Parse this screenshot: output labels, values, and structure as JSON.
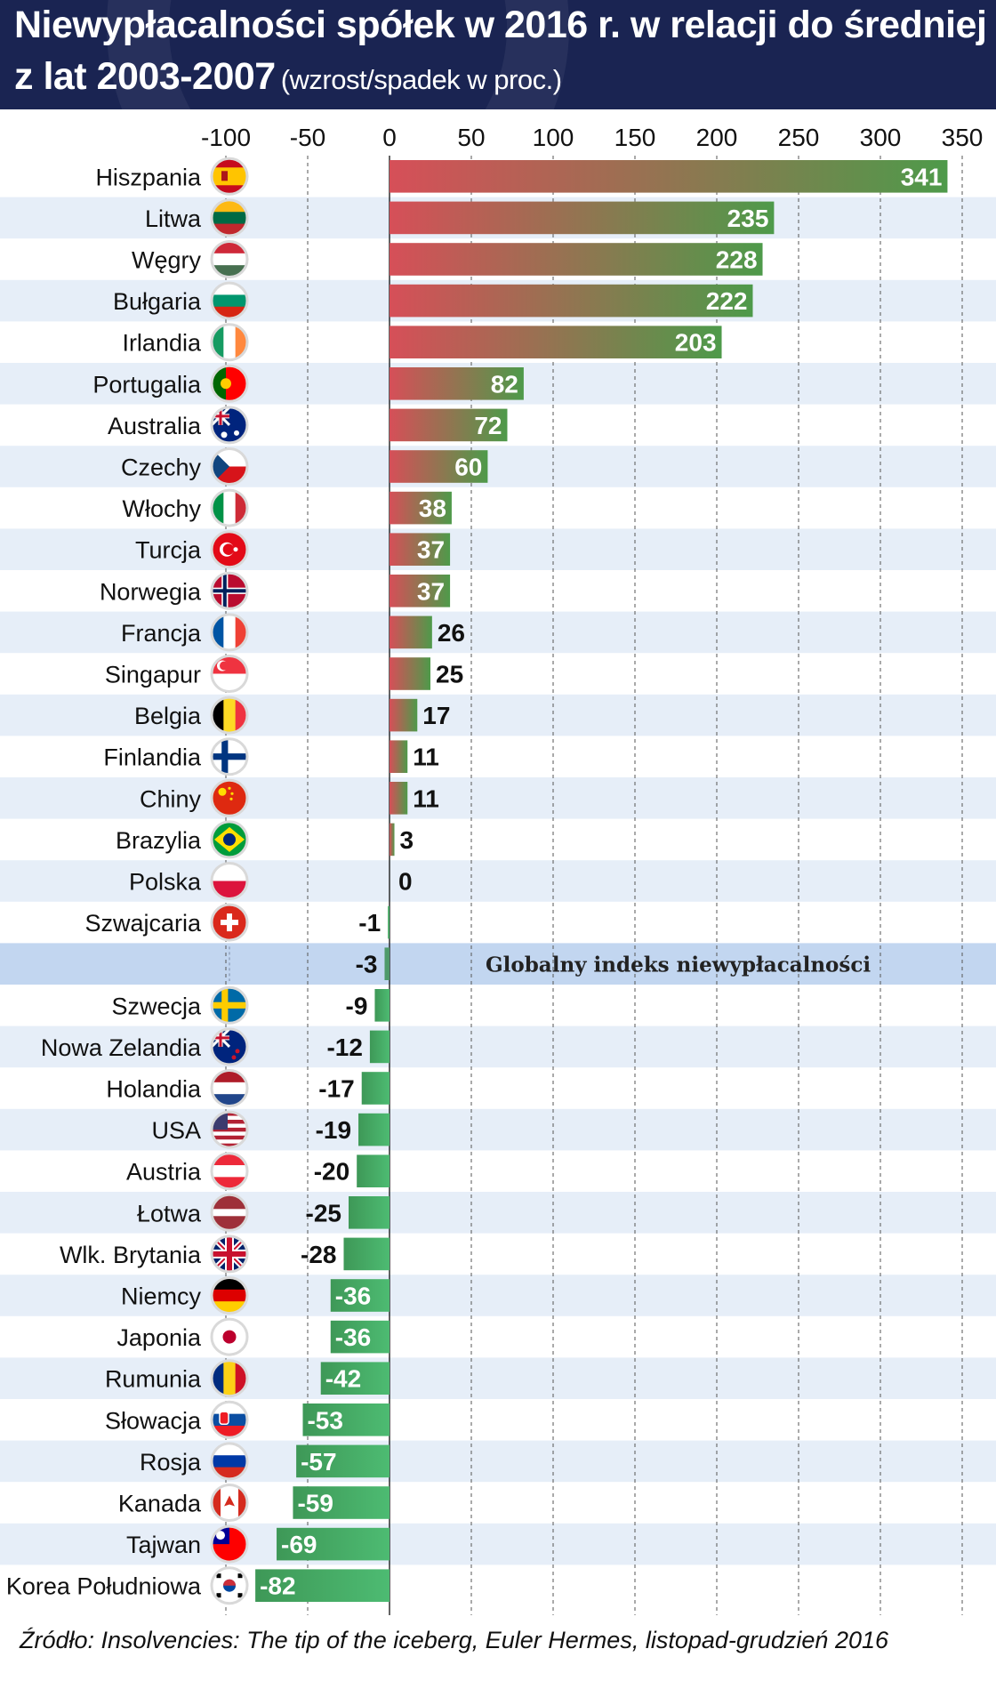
{
  "title": {
    "line1": "Niewypłacalności spółek w 2016 r. w relacji do średniej",
    "line2": "z lat 2003-2007",
    "subtitle": "(wzrost/spadek w proc.)"
  },
  "source": "Źródło: Insolvencies: The tip of the iceberg, Euler Hermes, listopad-grudzień 2016",
  "colors": {
    "header_bg": "#1a2452",
    "bar_red": "#d64f58",
    "bar_green": "#4e9a4a",
    "bar_light_green": "#4dbb72",
    "row_stripe": "#e6eef8",
    "global_row": "#c2d6f0"
  },
  "chart_data": {
    "type": "bar",
    "orientation": "horizontal",
    "xlim": [
      -100,
      350
    ],
    "xticks": [
      -100,
      -50,
      0,
      50,
      100,
      150,
      200,
      250,
      300,
      350
    ],
    "grid": "vertical dashed",
    "categories": [
      "Hiszpania",
      "Litwa",
      "Węgry",
      "Bułgaria",
      "Irlandia",
      "Portugalia",
      "Australia",
      "Czechy",
      "Włochy",
      "Turcja",
      "Norwegia",
      "Francja",
      "Singapur",
      "Belgia",
      "Finlandia",
      "Chiny",
      "Brazylia",
      "Polska",
      "Szwajcaria",
      "",
      "Szwecja",
      "Nowa Zelandia",
      "Holandia",
      "USA",
      "Austria",
      "Łotwa",
      "Wlk. Brytania",
      "Niemcy",
      "Japonia",
      "Rumunia",
      "Słowacja",
      "Rosja",
      "Kanada",
      "Tajwan",
      "Korea Południowa"
    ],
    "values": [
      341,
      235,
      228,
      222,
      203,
      82,
      72,
      60,
      38,
      37,
      37,
      26,
      25,
      17,
      11,
      11,
      3,
      0,
      -1,
      -3,
      -9,
      -12,
      -17,
      -19,
      -20,
      -25,
      -28,
      -36,
      -36,
      -42,
      -53,
      -57,
      -59,
      -69,
      -82
    ],
    "value_labels": [
      "341",
      "235",
      "228",
      "222",
      "203",
      "82",
      "72",
      "60",
      "38",
      "37",
      "37",
      "26",
      "25",
      "17",
      "11",
      "11",
      "3",
      "0",
      "-1",
      "-3",
      "-9",
      "-12",
      "-17",
      "-19",
      "-20",
      "-25",
      "-28",
      "-36",
      "-36",
      "-42",
      "-53",
      "-57",
      "-59",
      "-69",
      "-82"
    ],
    "flags": [
      "es",
      "lt",
      "hu",
      "bg",
      "ie",
      "pt",
      "au",
      "cz",
      "it",
      "tr",
      "no",
      "fr",
      "sg",
      "be",
      "fi",
      "cn",
      "br",
      "pl",
      "ch",
      "",
      "se",
      "nz",
      "nl",
      "us",
      "at",
      "lv",
      "gb",
      "de",
      "jp",
      "ro",
      "sk",
      "ru",
      "ca",
      "tw",
      "kr"
    ],
    "global_row_index": 19,
    "global_row_label": "Globalny indeks niewypłacalności"
  }
}
